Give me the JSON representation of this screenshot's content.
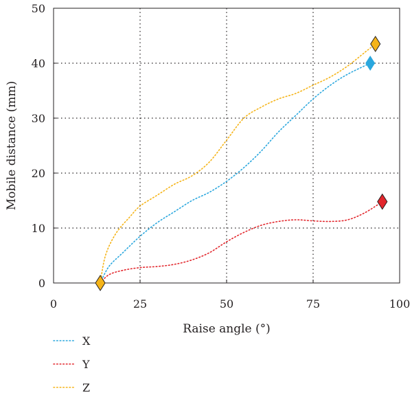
{
  "chart_data": {
    "type": "line",
    "title": "",
    "xlabel": "Raise angle (°)",
    "ylabel": "Mobile distance (mm)",
    "xlim": [
      0,
      100
    ],
    "ylim": [
      0,
      50
    ],
    "x_ticks": [
      0,
      25,
      50,
      75,
      100
    ],
    "y_ticks": [
      0,
      10,
      20,
      30,
      40,
      50
    ],
    "x_tick_labels": [
      "0",
      "25",
      "50",
      "75",
      "100"
    ],
    "y_tick_labels": [
      "0",
      "10",
      "20",
      "30",
      "40",
      "50"
    ],
    "grid": true,
    "legend_position": "bottom-left",
    "start_marker": {
      "x": 13.5,
      "y": 0,
      "color": "#f5b418"
    },
    "series": [
      {
        "name": "X",
        "color": "#2aa7de",
        "x": [
          13.5,
          16,
          20,
          25,
          30,
          35,
          40,
          45,
          50,
          55,
          60,
          65,
          70,
          75,
          80,
          85,
          91.5
        ],
        "y": [
          0,
          3,
          5.5,
          8.5,
          11,
          13,
          15,
          16.5,
          18.5,
          21,
          24,
          27.5,
          30.5,
          33.5,
          36,
          38,
          40
        ],
        "end_marker": {
          "x": 91.5,
          "y": 40
        }
      },
      {
        "name": "Y",
        "color": "#e2262c",
        "x": [
          13.5,
          16,
          20,
          25,
          30,
          35,
          40,
          45,
          50,
          55,
          60,
          65,
          70,
          75,
          80,
          85,
          90,
          95
        ],
        "y": [
          0,
          1.5,
          2.3,
          2.8,
          3,
          3.4,
          4.2,
          5.5,
          7.5,
          9.2,
          10.5,
          11.2,
          11.5,
          11.3,
          11.2,
          11.5,
          12.8,
          14.8
        ],
        "end_marker": {
          "x": 95,
          "y": 14.8
        }
      },
      {
        "name": "Z",
        "color": "#f5b418",
        "x": [
          13.5,
          15,
          18,
          22,
          25,
          30,
          35,
          40,
          45,
          50,
          55,
          60,
          65,
          70,
          75,
          80,
          85,
          90,
          93
        ],
        "y": [
          0,
          5,
          9,
          12,
          14,
          16,
          18,
          19.5,
          22,
          26,
          30,
          32,
          33.5,
          34.5,
          36,
          37.5,
          39.5,
          42,
          43.5
        ],
        "end_marker": {
          "x": 93,
          "y": 43.5
        }
      }
    ]
  }
}
